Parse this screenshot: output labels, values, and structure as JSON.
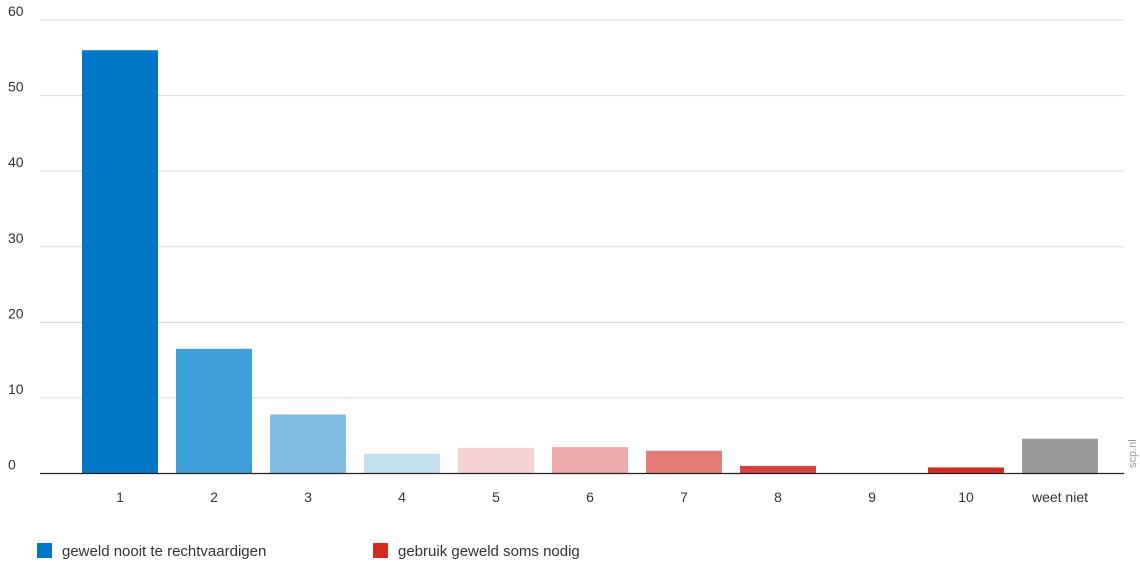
{
  "chart_data": {
    "type": "bar",
    "categories": [
      "1",
      "2",
      "3",
      "4",
      "5",
      "6",
      "7",
      "8",
      "9",
      "10",
      "weet niet"
    ],
    "values": [
      56,
      16.5,
      7.8,
      2.6,
      3.4,
      3.5,
      3.0,
      1.0,
      0,
      0.8,
      4.6
    ],
    "bar_colors": [
      "#0077c8",
      "#3f9fd8",
      "#80bde4",
      "#c5dff2",
      "#f6d3d3",
      "#efaaa9",
      "#e67c78",
      "#d9413a",
      "#d52b1e",
      "#d52b1e",
      "#999999"
    ],
    "ylim": [
      0,
      60
    ],
    "yticks": [
      0,
      10,
      20,
      30,
      40,
      50,
      60
    ],
    "grid": true,
    "legend_position": "bottom-left",
    "legend": [
      {
        "label": "geweld nooit te rechtvaardigen",
        "color": "#0077c8"
      },
      {
        "label": "gebruik geweld soms nodig",
        "color": "#d52b1e"
      }
    ],
    "watermark": "scp.nl"
  }
}
